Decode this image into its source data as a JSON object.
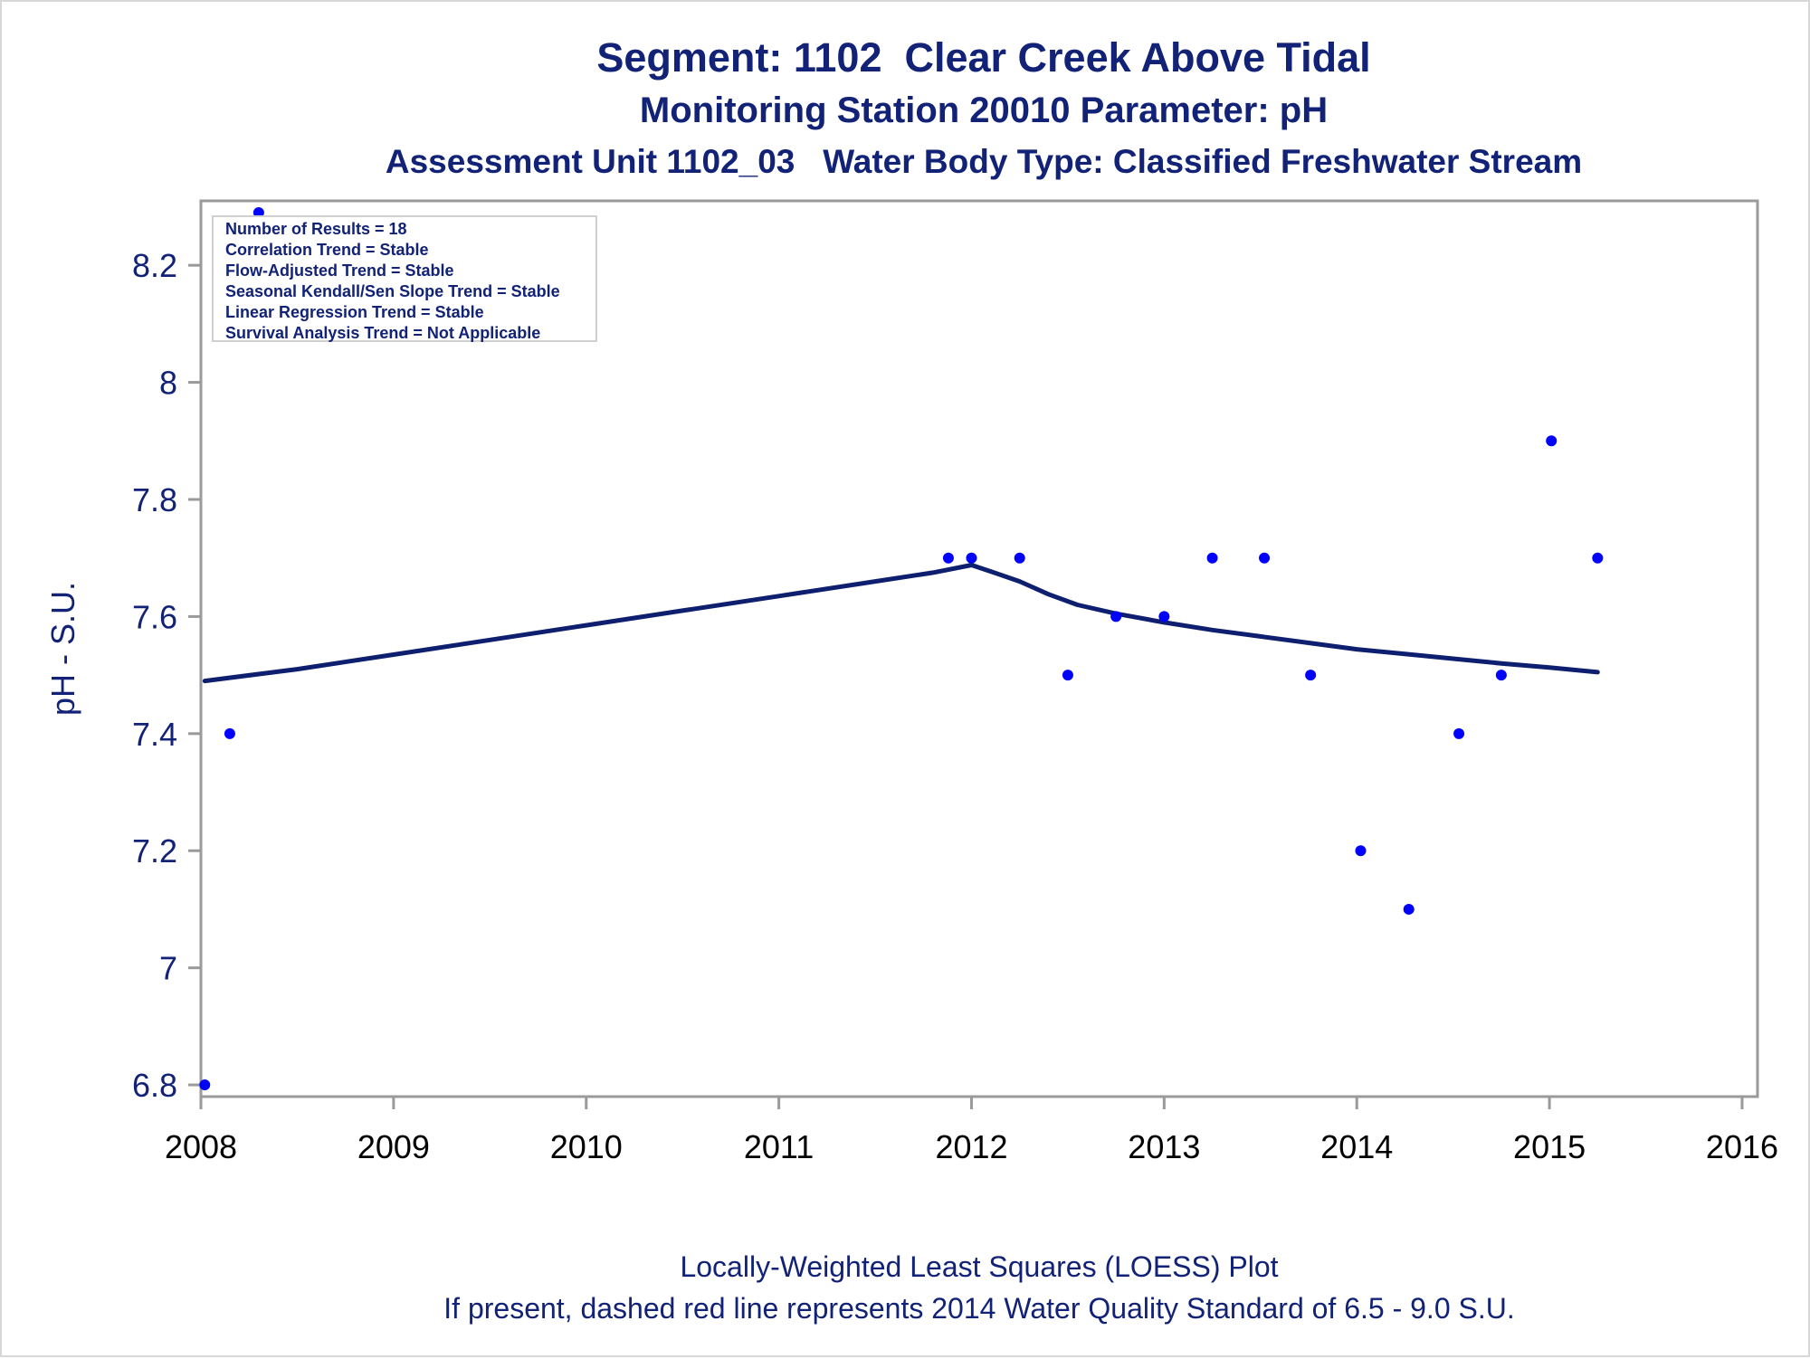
{
  "titles": {
    "line1": "Segment: 1102  Clear Creek Above Tidal",
    "line2": "Monitoring Station 20010 Parameter: pH",
    "line3": "Assessment Unit 1102_03   Water Body Type: Classified Freshwater Stream"
  },
  "footnotes": {
    "line1": "Locally-Weighted Least Squares (LOESS) Plot",
    "line2": "If present, dashed red line represents 2014 Water Quality Standard of 6.5 - 9.0 S.U."
  },
  "stats_box": [
    "Number of Results = 18",
    "Correlation Trend = Stable",
    "Flow-Adjusted Trend = Stable",
    "Seasonal Kendall/Sen Slope Trend = Stable",
    "Linear Regression Trend = Stable",
    "Survival Analysis Trend = Not Applicable"
  ],
  "colors": {
    "text": "#112277",
    "points": "#0000ff",
    "loess_line": "#0d1f6e",
    "axis": "#9a9a9a"
  },
  "chart_data": {
    "type": "scatter",
    "title": "Segment: 1102  Clear Creek Above Tidal",
    "xlabel": "",
    "ylabel": "pH - S.U.",
    "xlim": [
      2008.0,
      2016.08
    ],
    "ylim": [
      6.78,
      8.31
    ],
    "x_ticks": [
      "2008",
      "2009",
      "2010",
      "2011",
      "2012",
      "2013",
      "2014",
      "2015",
      "2016"
    ],
    "y_ticks": [
      "6.8",
      "7",
      "7.2",
      "7.4",
      "7.6",
      "7.8",
      "8",
      "8.2"
    ],
    "grid": false,
    "legend": "none",
    "series": [
      {
        "type": "scatter",
        "x": [
          2008.02,
          2008.15,
          2008.3,
          2011.88,
          2012.0,
          2012.25,
          2012.5,
          2012.75,
          2013.0,
          2013.25,
          2013.52,
          2013.76,
          2014.02,
          2014.27,
          2014.53,
          2014.75,
          2015.01,
          2015.25
        ],
        "y": [
          6.8,
          7.4,
          8.29,
          7.7,
          7.7,
          7.7,
          7.5,
          7.6,
          7.6,
          7.7,
          7.7,
          7.5,
          7.2,
          7.1,
          7.4,
          7.5,
          7.9,
          7.7
        ]
      },
      {
        "type": "line",
        "x": [
          2008.02,
          2008.5,
          2009.0,
          2009.5,
          2010.0,
          2010.5,
          2011.0,
          2011.5,
          2011.8,
          2012.0,
          2012.1,
          2012.25,
          2012.4,
          2012.55,
          2012.75,
          2013.0,
          2013.25,
          2013.5,
          2013.75,
          2014.0,
          2014.25,
          2014.5,
          2014.75,
          2015.0,
          2015.25
        ],
        "y": [
          7.49,
          7.51,
          7.535,
          7.56,
          7.585,
          7.61,
          7.635,
          7.66,
          7.675,
          7.688,
          7.677,
          7.66,
          7.638,
          7.62,
          7.605,
          7.59,
          7.577,
          7.566,
          7.555,
          7.544,
          7.536,
          7.528,
          7.52,
          7.513,
          7.505
        ]
      }
    ]
  }
}
